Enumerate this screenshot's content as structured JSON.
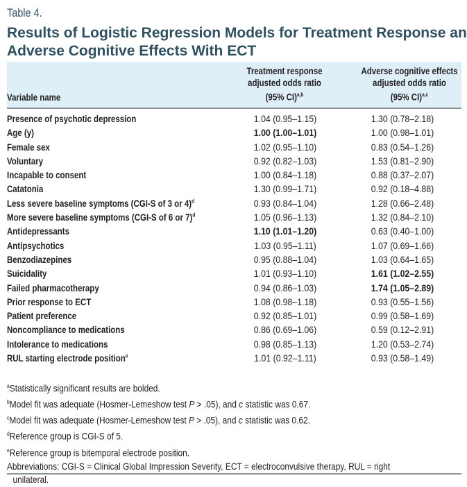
{
  "table_label": "Table 4.",
  "title": "Results of Logistic Regression Models for Treatment Response and Adverse Cognitive Effects With ECT",
  "columns": {
    "variable": "Variable name",
    "treatment": [
      "Treatment response",
      "adjusted odds ratio",
      "(95% CI)"
    ],
    "treatment_sup": "a,b",
    "adverse": [
      "Adverse cognitive effects",
      "adjusted odds ratio",
      "(95% CI)"
    ],
    "adverse_sup": "a,c"
  },
  "rows": [
    {
      "name": "Presence of psychotic depression",
      "sup": "",
      "tr": "1.04 (0.95–1.15)",
      "trb": false,
      "ad": "1.30 (0.78–2.18)",
      "adb": false
    },
    {
      "name": "Age (y)",
      "sup": "",
      "tr": "1.00 (1.00–1.01)",
      "trb": true,
      "ad": "1.00 (0.98–1.01)",
      "adb": false
    },
    {
      "name": "Female sex",
      "sup": "",
      "tr": "1.02 (0.95–1.10)",
      "trb": false,
      "ad": "0.83 (0.54–1.26)",
      "adb": false
    },
    {
      "name": "Voluntary",
      "sup": "",
      "tr": "0.92 (0.82–1.03)",
      "trb": false,
      "ad": "1.53 (0.81–2.90)",
      "adb": false
    },
    {
      "name": "Incapable to consent",
      "sup": "",
      "tr": "1.00 (0.84–1.18)",
      "trb": false,
      "ad": "0.88 (0.37–2.07)",
      "adb": false
    },
    {
      "name": "Catatonia",
      "sup": "",
      "tr": "1.30 (0.99–1.71)",
      "trb": false,
      "ad": "0.92 (0.18–4.88)",
      "adb": false
    },
    {
      "name": "Less severe baseline symptoms (CGI-S of 3 or 4)",
      "sup": "d",
      "tr": "0.93 (0.84–1.04)",
      "trb": false,
      "ad": "1.28 (0.66–2.48)",
      "adb": false
    },
    {
      "name": "More severe baseline symptoms (CGI-S of 6 or 7)",
      "sup": "d",
      "tr": "1.05 (0.96–1.13)",
      "trb": false,
      "ad": "1.32 (0.84–2.10)",
      "adb": false
    },
    {
      "name": "Antidepressants",
      "sup": "",
      "tr": "1.10 (1.01–1.20)",
      "trb": true,
      "ad": "0.63 (0.40–1.00)",
      "adb": false
    },
    {
      "name": "Antipsychotics",
      "sup": "",
      "tr": "1.03 (0.95–1.11)",
      "trb": false,
      "ad": "1.07 (0.69–1.66)",
      "adb": false
    },
    {
      "name": "Benzodiazepines",
      "sup": "",
      "tr": "0.95 (0.88–1.04)",
      "trb": false,
      "ad": "1.03 (0.64–1.65)",
      "adb": false
    },
    {
      "name": "Suicidality",
      "sup": "",
      "tr": "1.01 (0.93–1.10)",
      "trb": false,
      "ad": "1.61 (1.02–2.55)",
      "adb": true
    },
    {
      "name": "Failed pharmacotherapy",
      "sup": "",
      "tr": "0.94 (0.86–1.03)",
      "trb": false,
      "ad": "1.74 (1.05–2.89)",
      "adb": true
    },
    {
      "name": "Prior response to ECT",
      "sup": "",
      "tr": "1.08 (0.98–1.18)",
      "trb": false,
      "ad": "0.93 (0.55–1.56)",
      "adb": false
    },
    {
      "name": "Patient preference",
      "sup": "",
      "tr": "0.92 (0.85–1.01)",
      "trb": false,
      "ad": "0.99 (0.58–1.69)",
      "adb": false
    },
    {
      "name": "Noncompliance to medications",
      "sup": "",
      "tr": "0.86 (0.69–1.06)",
      "trb": false,
      "ad": "0.59 (0.12–2.91)",
      "adb": false
    },
    {
      "name": "Intolerance to medications",
      "sup": "",
      "tr": "0.98 (0.85–1.13)",
      "trb": false,
      "ad": "1.20 (0.53–2.74)",
      "adb": false
    },
    {
      "name": "RUL starting electrode position",
      "sup": "e",
      "tr": "1.01 (0.92–1.11)",
      "trb": false,
      "ad": "0.93 (0.58–1.49)",
      "adb": false
    }
  ],
  "notes": {
    "a": {
      "sup": "a",
      "text": "Statistically significant results are bolded."
    },
    "b": {
      "sup": "b",
      "pre": "Model fit was adequate (Hosmer-Lemeshow test ",
      "p": "P",
      "mid": " > .05), and ",
      "c": "c",
      "post": " statistic was 0.67."
    },
    "c": {
      "sup": "c",
      "pre": "Model fit was adequate (Hosmer-Lemeshow test ",
      "p": "P",
      "mid": " > .05), and ",
      "c": "c",
      "post": " statistic was 0.62."
    },
    "d": {
      "sup": "d",
      "text": "Reference group is CGI-S of 5."
    },
    "e": {
      "sup": "e",
      "text": "Reference group is bitemporal electrode position."
    },
    "abbreviations": "Abbreviations: CGI-S = Clinical Global Impression Severity, ECT = electroconvulsive therapy, RUL = right",
    "abbreviations_cont": "unilateral."
  },
  "colors": {
    "title": "#2f5060",
    "header_bg": "#deeff8",
    "rule": "#8a9499"
  }
}
